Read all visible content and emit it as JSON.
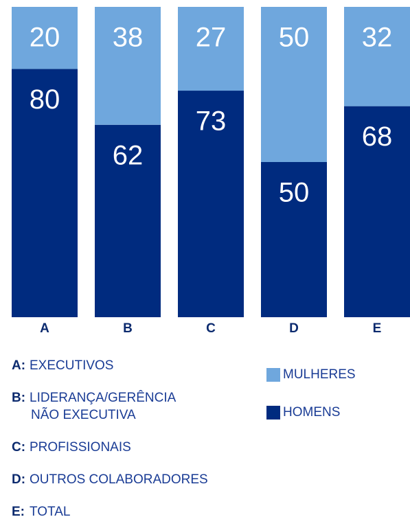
{
  "chart_data": {
    "type": "stacked_bar",
    "categories": [
      "A",
      "B",
      "C",
      "D",
      "E"
    ],
    "series": [
      {
        "name": "HOMENS",
        "color": "#002b7f",
        "values": [
          80,
          62,
          73,
          50,
          68
        ]
      },
      {
        "name": "MULHERES",
        "color": "#6fa7dd",
        "values": [
          20,
          38,
          27,
          50,
          32
        ]
      }
    ],
    "ylim": [
      0,
      100
    ],
    "legend_order": [
      1,
      0
    ],
    "category_notes": [
      {
        "key": "A:",
        "lines": [
          "EXECUTIVOS"
        ]
      },
      {
        "key": "B:",
        "lines": [
          "LIDERANÇA/GERÊNCIA",
          "NÃO EXECUTIVA"
        ]
      },
      {
        "key": "C:",
        "lines": [
          "PROFISSIONAIS"
        ]
      },
      {
        "key": "D:",
        "lines": [
          "OUTROS COLABORADORES"
        ]
      },
      {
        "key": "E:",
        "lines": [
          "TOTAL"
        ]
      }
    ]
  }
}
